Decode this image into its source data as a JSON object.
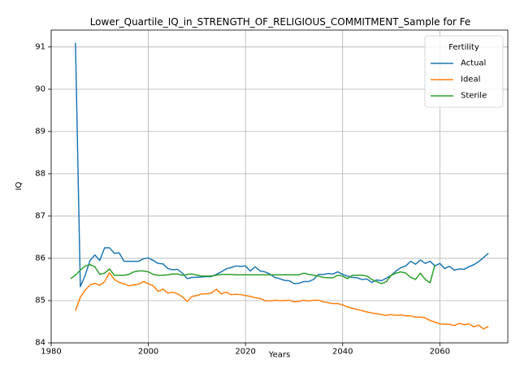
{
  "chart_data": {
    "type": "line",
    "title": "Lower_Quartile_IQ_in_STRENGTH_OF_RELIGIOUS_COMMITMENT_Sample for Fe",
    "xlabel": "Years",
    "ylabel": "IQ",
    "xlim": [
      1980,
      2074
    ],
    "ylim": [
      84,
      91.4
    ],
    "xticks": [
      1980,
      2000,
      2020,
      2040,
      2060
    ],
    "yticks": [
      84,
      85,
      86,
      87,
      88,
      89,
      90,
      91
    ],
    "grid": true,
    "legend": {
      "title": "Fertility",
      "placement": "top-right"
    },
    "series": [
      {
        "name": "Actual",
        "color": "#1f77b4",
        "x": [
          1985,
          1986,
          1987,
          1988,
          1989,
          1990,
          1991,
          1992,
          1993,
          1994,
          1995,
          1996,
          1997,
          1998,
          1999,
          2000,
          2001,
          2002,
          2003,
          2004,
          2005,
          2006,
          2007,
          2008,
          2009,
          2010,
          2011,
          2012,
          2013,
          2014,
          2015,
          2016,
          2017,
          2018,
          2019,
          2020,
          2021,
          2022,
          2023,
          2024,
          2025,
          2026,
          2027,
          2028,
          2029,
          2030,
          2031,
          2032,
          2033,
          2034,
          2035,
          2036,
          2037,
          2038,
          2039,
          2040,
          2041,
          2042,
          2043,
          2044,
          2045,
          2046,
          2047,
          2048,
          2049,
          2050,
          2051,
          2052,
          2053,
          2054,
          2055,
          2056,
          2057,
          2058,
          2059,
          2060,
          2061,
          2062,
          2063,
          2064,
          2065,
          2066,
          2067,
          2068,
          2069,
          2070
        ],
        "y": [
          91.1,
          85.33,
          85.6,
          85.95,
          86.08,
          85.95,
          86.25,
          86.25,
          86.12,
          86.13,
          85.93,
          85.93,
          85.93,
          85.93,
          85.99,
          86.01,
          85.95,
          85.88,
          85.87,
          85.76,
          85.73,
          85.74,
          85.65,
          85.52,
          85.55,
          85.55,
          85.56,
          85.57,
          85.57,
          85.62,
          85.68,
          85.75,
          85.78,
          85.82,
          85.81,
          85.82,
          85.7,
          85.8,
          85.7,
          85.68,
          85.63,
          85.55,
          85.52,
          85.48,
          85.47,
          85.4,
          85.41,
          85.45,
          85.45,
          85.5,
          85.62,
          85.62,
          85.64,
          85.63,
          85.68,
          85.62,
          85.58,
          85.55,
          85.54,
          85.5,
          85.51,
          85.43,
          85.49,
          85.47,
          85.53,
          85.6,
          85.7,
          85.78,
          85.82,
          85.93,
          85.86,
          85.96,
          85.88,
          85.93,
          85.82,
          85.88,
          85.76,
          85.81,
          85.72,
          85.75,
          85.74,
          85.8,
          85.85,
          85.92,
          86.02,
          86.12
        ]
      },
      {
        "name": "Ideal",
        "color": "#ff7f0e",
        "x": [
          1985,
          1986,
          1987,
          1988,
          1989,
          1990,
          1991,
          1992,
          1993,
          1994,
          1995,
          1996,
          1997,
          1998,
          1999,
          2000,
          2001,
          2002,
          2003,
          2004,
          2005,
          2006,
          2007,
          2008,
          2009,
          2010,
          2011,
          2012,
          2013,
          2014,
          2015,
          2016,
          2017,
          2018,
          2019,
          2020,
          2021,
          2022,
          2023,
          2024,
          2025,
          2026,
          2027,
          2028,
          2029,
          2030,
          2031,
          2032,
          2033,
          2034,
          2035,
          2036,
          2037,
          2038,
          2039,
          2040,
          2041,
          2042,
          2043,
          2044,
          2045,
          2046,
          2047,
          2048,
          2049,
          2050,
          2051,
          2052,
          2053,
          2054,
          2055,
          2056,
          2057,
          2058,
          2059,
          2060,
          2061,
          2062,
          2063,
          2064,
          2065,
          2066,
          2067,
          2068,
          2069,
          2070
        ],
        "y": [
          84.76,
          85.08,
          85.25,
          85.37,
          85.41,
          85.36,
          85.45,
          85.66,
          85.5,
          85.43,
          85.4,
          85.35,
          85.37,
          85.39,
          85.45,
          85.4,
          85.35,
          85.22,
          85.27,
          85.18,
          85.2,
          85.16,
          85.09,
          84.98,
          85.1,
          85.12,
          85.16,
          85.16,
          85.18,
          85.27,
          85.16,
          85.2,
          85.14,
          85.15,
          85.14,
          85.12,
          85.1,
          85.07,
          85.05,
          85.0,
          84.99,
          85.01,
          85.0,
          85.0,
          85.01,
          84.97,
          84.98,
          85.01,
          84.99,
          85.01,
          85.01,
          84.97,
          84.95,
          84.93,
          84.93,
          84.9,
          84.85,
          84.82,
          84.79,
          84.76,
          84.73,
          84.71,
          84.69,
          84.67,
          84.65,
          84.67,
          84.65,
          84.66,
          84.64,
          84.64,
          84.61,
          84.61,
          84.59,
          84.53,
          84.49,
          84.45,
          84.44,
          84.44,
          84.41,
          84.46,
          84.43,
          84.45,
          84.38,
          84.42,
          84.33,
          84.39
        ]
      },
      {
        "name": "Sterile",
        "color": "#2ca02c",
        "x": [
          1984,
          1985,
          1986,
          1987,
          1988,
          1989,
          1990,
          1991,
          1992,
          1993,
          1994,
          1995,
          1996,
          1997,
          1998,
          1999,
          2000,
          2001,
          2002,
          2003,
          2004,
          2005,
          2006,
          2007,
          2008,
          2009,
          2010,
          2011,
          2012,
          2013,
          2014,
          2015,
          2016,
          2017,
          2018,
          2019,
          2020,
          2021,
          2022,
          2023,
          2024,
          2025,
          2026,
          2027,
          2028,
          2029,
          2030,
          2031,
          2032,
          2033,
          2034,
          2035,
          2036,
          2037,
          2038,
          2039,
          2040,
          2041,
          2042,
          2043,
          2044,
          2045,
          2046,
          2047,
          2048,
          2049,
          2050,
          2051,
          2052,
          2053,
          2054,
          2055,
          2056,
          2057,
          2058,
          2059
        ],
        "y": [
          85.52,
          85.6,
          85.72,
          85.82,
          85.85,
          85.8,
          85.62,
          85.65,
          85.75,
          85.6,
          85.6,
          85.6,
          85.62,
          85.68,
          85.7,
          85.7,
          85.68,
          85.62,
          85.6,
          85.6,
          85.61,
          85.63,
          85.63,
          85.6,
          85.62,
          85.63,
          85.6,
          85.58,
          85.58,
          85.58,
          85.6,
          85.62,
          85.62,
          85.62,
          85.61,
          85.61,
          85.61,
          85.61,
          85.61,
          85.61,
          85.61,
          85.61,
          85.61,
          85.61,
          85.61,
          85.61,
          85.61,
          85.61,
          85.65,
          85.62,
          85.6,
          85.58,
          85.55,
          85.54,
          85.54,
          85.6,
          85.58,
          85.52,
          85.6,
          85.6,
          85.6,
          85.58,
          85.5,
          85.45,
          85.4,
          85.45,
          85.6,
          85.65,
          85.68,
          85.65,
          85.55,
          85.5,
          85.65,
          85.5,
          85.42,
          85.85
        ]
      }
    ]
  }
}
